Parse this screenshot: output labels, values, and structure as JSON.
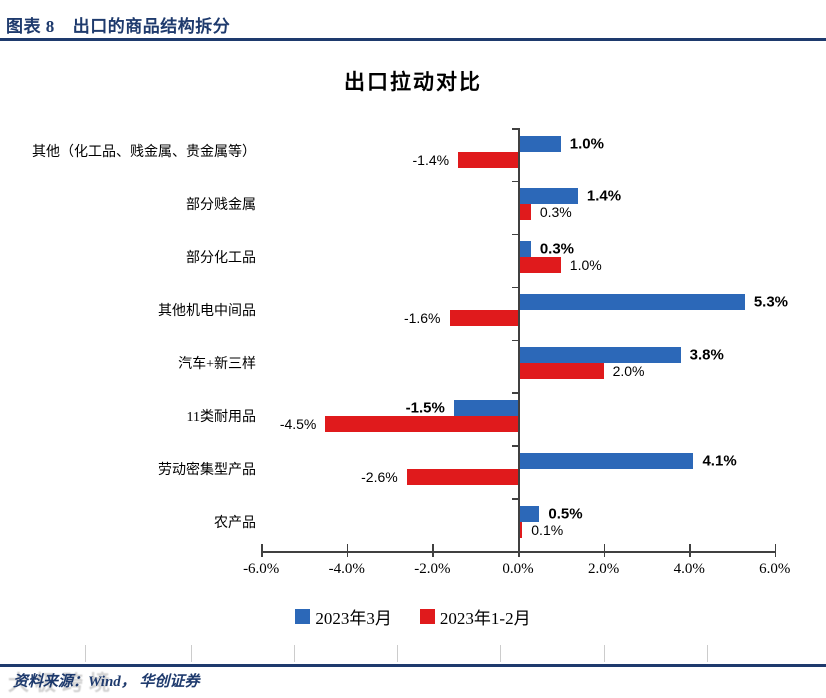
{
  "header": {
    "label": "图表 8",
    "title": "出口的商品结构拆分"
  },
  "chart_data": {
    "type": "bar",
    "orientation": "horizontal",
    "title": "出口拉动对比",
    "categories": [
      "其他（化工品、贱金属、贵金属等）",
      "部分贱金属",
      "部分化工品",
      "其他机电中间品",
      "汽车+新三样",
      "11类耐用品",
      "劳动密集型产品",
      "农产品"
    ],
    "series": [
      {
        "name": "2023年3月",
        "color": "#2c68b8",
        "values": [
          1.0,
          1.4,
          0.3,
          5.3,
          3.8,
          -1.5,
          4.1,
          0.5
        ]
      },
      {
        "name": "2023年1-2月",
        "color": "#e01a1c",
        "values": [
          -1.4,
          0.3,
          1.0,
          -1.6,
          2.0,
          -4.5,
          -2.6,
          0.1
        ]
      }
    ],
    "data_labels": [
      "1.0%",
      "-1.4%",
      "1.4%",
      "0.3%",
      "0.3%",
      "1.0%",
      "5.3%",
      "-1.6%",
      "3.8%",
      "2.0%",
      "-1.5%",
      "-4.5%",
      "4.1%",
      "-2.6%",
      "0.5%",
      "0.1%"
    ],
    "xlim": [
      -6,
      6
    ],
    "x_ticks": [
      "-6.0%",
      "-4.0%",
      "-2.0%",
      "0.0%",
      "2.0%",
      "4.0%",
      "6.0%"
    ],
    "xlabel": "",
    "ylabel": "",
    "grid": false,
    "legend_position": "bottom"
  },
  "footer": {
    "source": "资料来源：Wind， 华创证券",
    "watermark": "大极跨境"
  }
}
